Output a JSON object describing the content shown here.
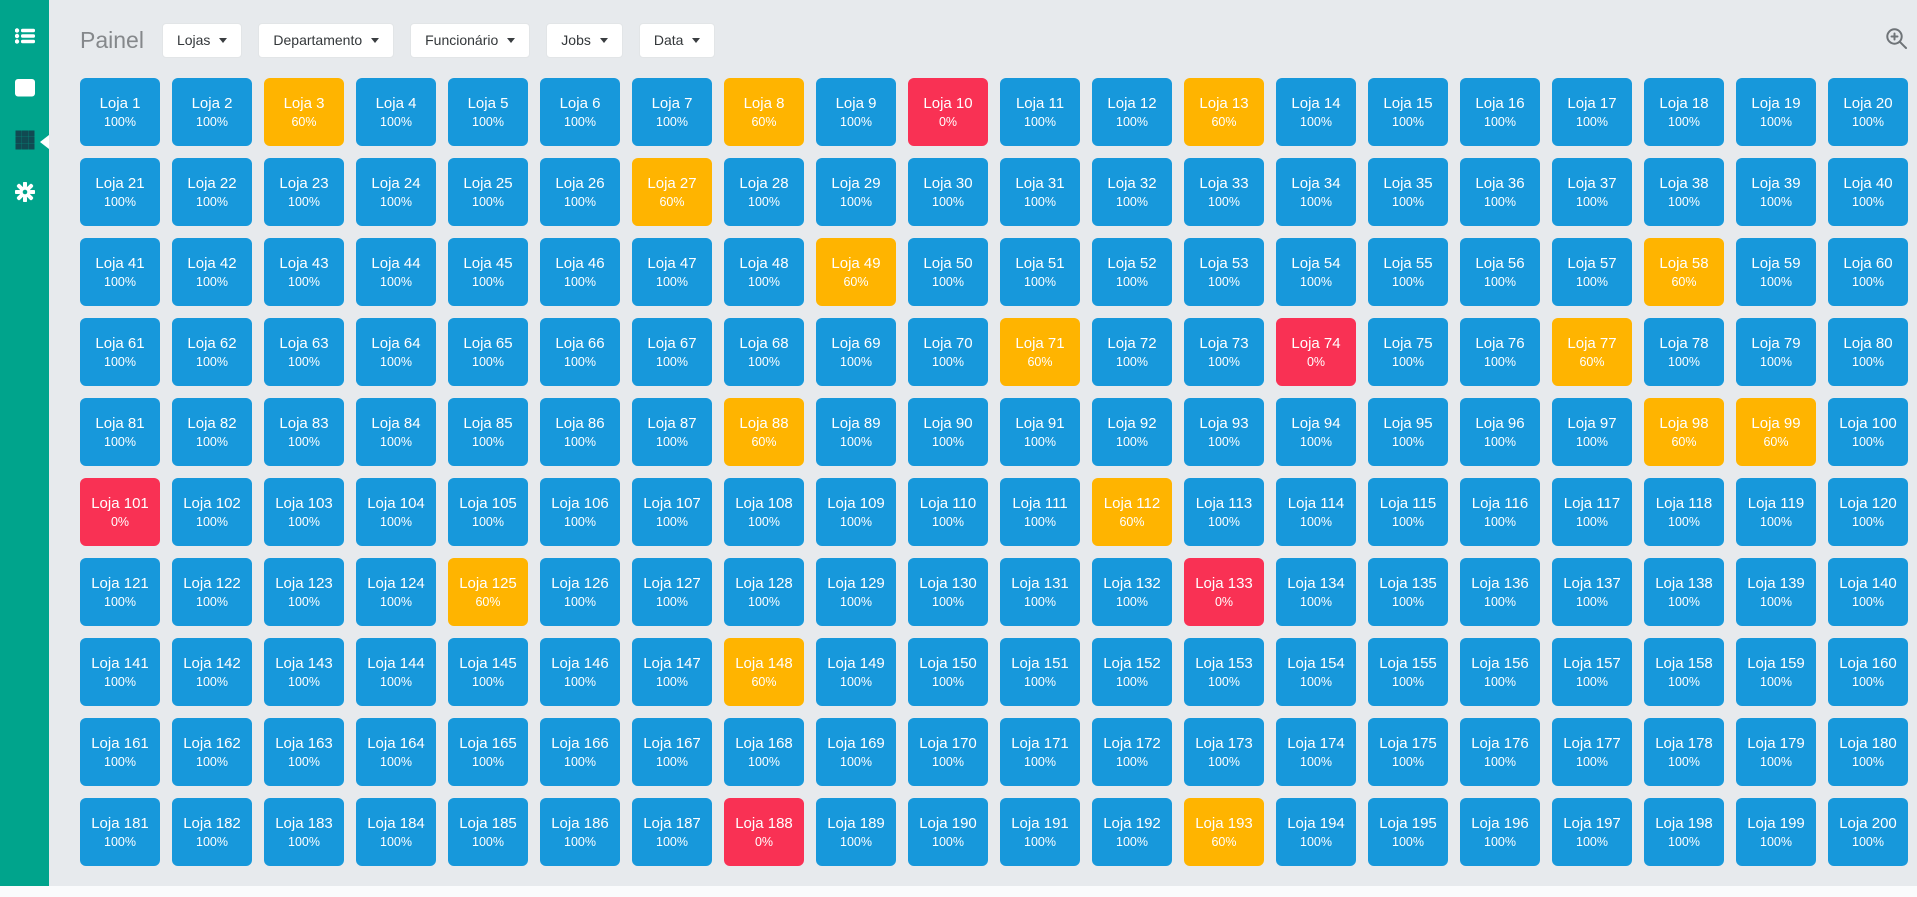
{
  "header": {
    "title": "Painel",
    "filters": [
      {
        "label": "Lojas"
      },
      {
        "label": "Departamento"
      },
      {
        "label": "Funcionário"
      },
      {
        "label": "Jobs"
      },
      {
        "label": "Data"
      }
    ]
  },
  "sidebar": {
    "items": [
      {
        "id": "menu",
        "icon": "list-icon",
        "active": false
      },
      {
        "id": "charts",
        "icon": "chart-line-icon",
        "active": false
      },
      {
        "id": "stores-grid",
        "icon": "grid-icon",
        "active": true
      },
      {
        "id": "settings",
        "icon": "gear-icon",
        "active": false
      }
    ]
  },
  "icons": {
    "top_right": "zoom-in-magnifier-icon"
  },
  "colors": {
    "sidebar": "#00A48C",
    "background": "#E7EAED",
    "tile_blue": "#1798DB",
    "tile_orange": "#FFB400",
    "tile_red": "#F93154",
    "active_icon": "#114A52"
  },
  "status_by_value": {
    "100%": "tile_blue",
    "60%": "tile_orange",
    "0%": "tile_red"
  },
  "tiles": [
    [
      "Loja 1",
      "100%"
    ],
    [
      "Loja 2",
      "100%"
    ],
    [
      "Loja 3",
      "60%"
    ],
    [
      "Loja 4",
      "100%"
    ],
    [
      "Loja 5",
      "100%"
    ],
    [
      "Loja 6",
      "100%"
    ],
    [
      "Loja 7",
      "100%"
    ],
    [
      "Loja 8",
      "60%"
    ],
    [
      "Loja 9",
      "100%"
    ],
    [
      "Loja 10",
      "0%"
    ],
    [
      "Loja 11",
      "100%"
    ],
    [
      "Loja 12",
      "100%"
    ],
    [
      "Loja 13",
      "60%"
    ],
    [
      "Loja 14",
      "100%"
    ],
    [
      "Loja 15",
      "100%"
    ],
    [
      "Loja 16",
      "100%"
    ],
    [
      "Loja 17",
      "100%"
    ],
    [
      "Loja 18",
      "100%"
    ],
    [
      "Loja 19",
      "100%"
    ],
    [
      "Loja 20",
      "100%"
    ],
    [
      "Loja 21",
      "100%"
    ],
    [
      "Loja 22",
      "100%"
    ],
    [
      "Loja 23",
      "100%"
    ],
    [
      "Loja 24",
      "100%"
    ],
    [
      "Loja 25",
      "100%"
    ],
    [
      "Loja 26",
      "100%"
    ],
    [
      "Loja 27",
      "60%"
    ],
    [
      "Loja 28",
      "100%"
    ],
    [
      "Loja 29",
      "100%"
    ],
    [
      "Loja 30",
      "100%"
    ],
    [
      "Loja 31",
      "100%"
    ],
    [
      "Loja 32",
      "100%"
    ],
    [
      "Loja 33",
      "100%"
    ],
    [
      "Loja 34",
      "100%"
    ],
    [
      "Loja 35",
      "100%"
    ],
    [
      "Loja 36",
      "100%"
    ],
    [
      "Loja 37",
      "100%"
    ],
    [
      "Loja 38",
      "100%"
    ],
    [
      "Loja 39",
      "100%"
    ],
    [
      "Loja 40",
      "100%"
    ],
    [
      "Loja 41",
      "100%"
    ],
    [
      "Loja 42",
      "100%"
    ],
    [
      "Loja 43",
      "100%"
    ],
    [
      "Loja 44",
      "100%"
    ],
    [
      "Loja 45",
      "100%"
    ],
    [
      "Loja 46",
      "100%"
    ],
    [
      "Loja 47",
      "100%"
    ],
    [
      "Loja 48",
      "100%"
    ],
    [
      "Loja 49",
      "60%"
    ],
    [
      "Loja 50",
      "100%"
    ],
    [
      "Loja 51",
      "100%"
    ],
    [
      "Loja 52",
      "100%"
    ],
    [
      "Loja 53",
      "100%"
    ],
    [
      "Loja 54",
      "100%"
    ],
    [
      "Loja 55",
      "100%"
    ],
    [
      "Loja 56",
      "100%"
    ],
    [
      "Loja 57",
      "100%"
    ],
    [
      "Loja 58",
      "60%"
    ],
    [
      "Loja 59",
      "100%"
    ],
    [
      "Loja 60",
      "100%"
    ],
    [
      "Loja 61",
      "100%"
    ],
    [
      "Loja 62",
      "100%"
    ],
    [
      "Loja 63",
      "100%"
    ],
    [
      "Loja 64",
      "100%"
    ],
    [
      "Loja 65",
      "100%"
    ],
    [
      "Loja 66",
      "100%"
    ],
    [
      "Loja 67",
      "100%"
    ],
    [
      "Loja 68",
      "100%"
    ],
    [
      "Loja 69",
      "100%"
    ],
    [
      "Loja 70",
      "100%"
    ],
    [
      "Loja 71",
      "60%"
    ],
    [
      "Loja 72",
      "100%"
    ],
    [
      "Loja 73",
      "100%"
    ],
    [
      "Loja 74",
      "0%"
    ],
    [
      "Loja 75",
      "100%"
    ],
    [
      "Loja 76",
      "100%"
    ],
    [
      "Loja 77",
      "60%"
    ],
    [
      "Loja 78",
      "100%"
    ],
    [
      "Loja 79",
      "100%"
    ],
    [
      "Loja 80",
      "100%"
    ],
    [
      "Loja 81",
      "100%"
    ],
    [
      "Loja 82",
      "100%"
    ],
    [
      "Loja 83",
      "100%"
    ],
    [
      "Loja 84",
      "100%"
    ],
    [
      "Loja 85",
      "100%"
    ],
    [
      "Loja 86",
      "100%"
    ],
    [
      "Loja 87",
      "100%"
    ],
    [
      "Loja 88",
      "60%"
    ],
    [
      "Loja 89",
      "100%"
    ],
    [
      "Loja 90",
      "100%"
    ],
    [
      "Loja 91",
      "100%"
    ],
    [
      "Loja 92",
      "100%"
    ],
    [
      "Loja 93",
      "100%"
    ],
    [
      "Loja 94",
      "100%"
    ],
    [
      "Loja 95",
      "100%"
    ],
    [
      "Loja 96",
      "100%"
    ],
    [
      "Loja 97",
      "100%"
    ],
    [
      "Loja 98",
      "60%"
    ],
    [
      "Loja 99",
      "60%"
    ],
    [
      "Loja 100",
      "100%"
    ],
    [
      "Loja 101",
      "0%"
    ],
    [
      "Loja 102",
      "100%"
    ],
    [
      "Loja 103",
      "100%"
    ],
    [
      "Loja 104",
      "100%"
    ],
    [
      "Loja 105",
      "100%"
    ],
    [
      "Loja 106",
      "100%"
    ],
    [
      "Loja 107",
      "100%"
    ],
    [
      "Loja 108",
      "100%"
    ],
    [
      "Loja 109",
      "100%"
    ],
    [
      "Loja 110",
      "100%"
    ],
    [
      "Loja 111",
      "100%"
    ],
    [
      "Loja 112",
      "60%"
    ],
    [
      "Loja 113",
      "100%"
    ],
    [
      "Loja 114",
      "100%"
    ],
    [
      "Loja 115",
      "100%"
    ],
    [
      "Loja 116",
      "100%"
    ],
    [
      "Loja 117",
      "100%"
    ],
    [
      "Loja 118",
      "100%"
    ],
    [
      "Loja 119",
      "100%"
    ],
    [
      "Loja 120",
      "100%"
    ],
    [
      "Loja 121",
      "100%"
    ],
    [
      "Loja 122",
      "100%"
    ],
    [
      "Loja 123",
      "100%"
    ],
    [
      "Loja 124",
      "100%"
    ],
    [
      "Loja 125",
      "60%"
    ],
    [
      "Loja 126",
      "100%"
    ],
    [
      "Loja 127",
      "100%"
    ],
    [
      "Loja 128",
      "100%"
    ],
    [
      "Loja 129",
      "100%"
    ],
    [
      "Loja 130",
      "100%"
    ],
    [
      "Loja 131",
      "100%"
    ],
    [
      "Loja 132",
      "100%"
    ],
    [
      "Loja 133",
      "0%"
    ],
    [
      "Loja 134",
      "100%"
    ],
    [
      "Loja 135",
      "100%"
    ],
    [
      "Loja 136",
      "100%"
    ],
    [
      "Loja 137",
      "100%"
    ],
    [
      "Loja 138",
      "100%"
    ],
    [
      "Loja 139",
      "100%"
    ],
    [
      "Loja 140",
      "100%"
    ],
    [
      "Loja 141",
      "100%"
    ],
    [
      "Loja 142",
      "100%"
    ],
    [
      "Loja 143",
      "100%"
    ],
    [
      "Loja 144",
      "100%"
    ],
    [
      "Loja 145",
      "100%"
    ],
    [
      "Loja 146",
      "100%"
    ],
    [
      "Loja 147",
      "100%"
    ],
    [
      "Loja 148",
      "60%"
    ],
    [
      "Loja 149",
      "100%"
    ],
    [
      "Loja 150",
      "100%"
    ],
    [
      "Loja 151",
      "100%"
    ],
    [
      "Loja 152",
      "100%"
    ],
    [
      "Loja 153",
      "100%"
    ],
    [
      "Loja 154",
      "100%"
    ],
    [
      "Loja 155",
      "100%"
    ],
    [
      "Loja 156",
      "100%"
    ],
    [
      "Loja 157",
      "100%"
    ],
    [
      "Loja 158",
      "100%"
    ],
    [
      "Loja 159",
      "100%"
    ],
    [
      "Loja 160",
      "100%"
    ],
    [
      "Loja 161",
      "100%"
    ],
    [
      "Loja 162",
      "100%"
    ],
    [
      "Loja 163",
      "100%"
    ],
    [
      "Loja 164",
      "100%"
    ],
    [
      "Loja 165",
      "100%"
    ],
    [
      "Loja 166",
      "100%"
    ],
    [
      "Loja 167",
      "100%"
    ],
    [
      "Loja 168",
      "100%"
    ],
    [
      "Loja 169",
      "100%"
    ],
    [
      "Loja 170",
      "100%"
    ],
    [
      "Loja 171",
      "100%"
    ],
    [
      "Loja 172",
      "100%"
    ],
    [
      "Loja 173",
      "100%"
    ],
    [
      "Loja 174",
      "100%"
    ],
    [
      "Loja 175",
      "100%"
    ],
    [
      "Loja 176",
      "100%"
    ],
    [
      "Loja 177",
      "100%"
    ],
    [
      "Loja 178",
      "100%"
    ],
    [
      "Loja 179",
      "100%"
    ],
    [
      "Loja 180",
      "100%"
    ],
    [
      "Loja 181",
      "100%"
    ],
    [
      "Loja 182",
      "100%"
    ],
    [
      "Loja 183",
      "100%"
    ],
    [
      "Loja 184",
      "100%"
    ],
    [
      "Loja 185",
      "100%"
    ],
    [
      "Loja 186",
      "100%"
    ],
    [
      "Loja 187",
      "100%"
    ],
    [
      "Loja 188",
      "0%"
    ],
    [
      "Loja 189",
      "100%"
    ],
    [
      "Loja 190",
      "100%"
    ],
    [
      "Loja 191",
      "100%"
    ],
    [
      "Loja 192",
      "100%"
    ],
    [
      "Loja 193",
      "60%"
    ],
    [
      "Loja 194",
      "100%"
    ],
    [
      "Loja 195",
      "100%"
    ],
    [
      "Loja 196",
      "100%"
    ],
    [
      "Loja 197",
      "100%"
    ],
    [
      "Loja 198",
      "100%"
    ],
    [
      "Loja 199",
      "100%"
    ],
    [
      "Loja 200",
      "100%"
    ]
  ]
}
